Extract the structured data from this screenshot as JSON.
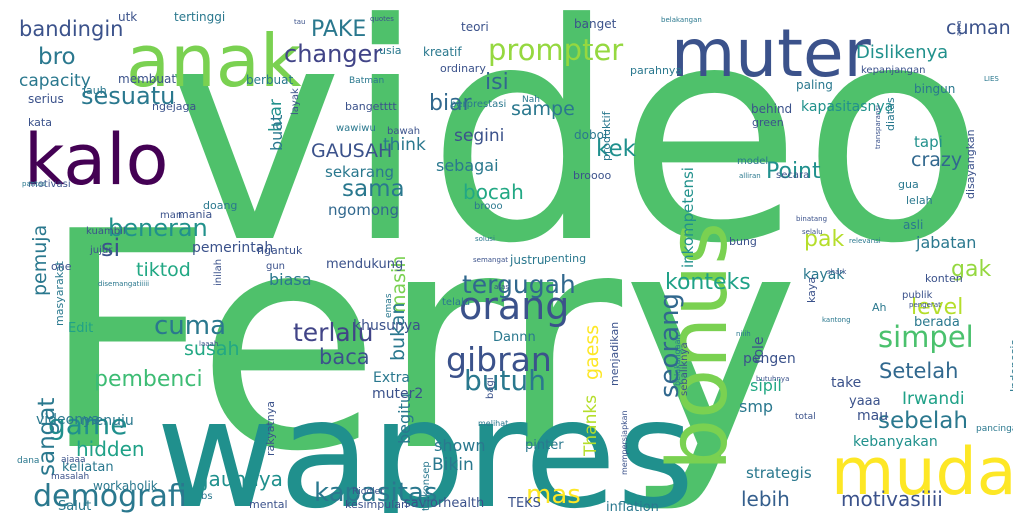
{
  "words": [
    {
      "text": "video",
      "color": "#4fc16b"
    },
    {
      "text": "Ferry",
      "color": "#4fc16b"
    },
    {
      "text": "wapres",
      "color": "#20908d"
    },
    {
      "text": "anak",
      "color": "#7ad151"
    },
    {
      "text": "muter",
      "color": "#3b528b"
    },
    {
      "text": "kalo",
      "color": "#440154"
    },
    {
      "text": "bonus",
      "color": "#7ad151"
    },
    {
      "text": "muda",
      "color": "#fde725"
    },
    {
      "text": "prompter",
      "color": "#95d840"
    },
    {
      "text": "changer",
      "color": "#414487"
    },
    {
      "text": "demografi",
      "color": "#2a788e"
    },
    {
      "text": "kapasitas",
      "color": "#2a788e"
    },
    {
      "text": "mas",
      "color": "#fde725"
    },
    {
      "text": "orang",
      "color": "#3b528b"
    },
    {
      "text": "gibran",
      "color": "#3b528b"
    },
    {
      "text": "butuh",
      "color": "#2a788e"
    },
    {
      "text": "simpel",
      "color": "#4ac16d"
    },
    {
      "text": "sebelah",
      "color": "#2a788e"
    },
    {
      "text": "Setelah",
      "color": "#31688e"
    },
    {
      "text": "lebih",
      "color": "#355f8d"
    },
    {
      "text": "motivasiiii",
      "color": "#3b528b"
    },
    {
      "text": "sesuatu",
      "color": "#2a788e"
    },
    {
      "text": "game",
      "color": "#20908d"
    },
    {
      "text": "terlalu",
      "color": "#414487"
    },
    {
      "text": "tergugah",
      "color": "#31688e"
    },
    {
      "text": "konteks",
      "color": "#1fa187"
    },
    {
      "text": "level",
      "color": "#b5de2b"
    },
    {
      "text": "seorang",
      "color": "#31688e"
    },
    {
      "text": "sangat",
      "color": "#2a788e"
    },
    {
      "text": "pembenci",
      "color": "#3dbc74"
    },
    {
      "text": "cuma",
      "color": "#2a788e"
    },
    {
      "text": "susah",
      "color": "#22a884"
    },
    {
      "text": "hidden",
      "color": "#1fa187"
    },
    {
      "text": "jauhnya",
      "color": "#20908d"
    },
    {
      "text": "Dislikenya",
      "color": "#21918c"
    },
    {
      "text": "cuman",
      "color": "#3b528b"
    },
    {
      "text": "PAKE",
      "color": "#2a788e"
    },
    {
      "text": "bro",
      "color": "#2a788e"
    },
    {
      "text": "bandingin",
      "color": "#3b528b"
    },
    {
      "text": "capacity",
      "color": "#2a788e"
    },
    {
      "text": "GAUSAH",
      "color": "#3b528b"
    },
    {
      "text": "Point",
      "color": "#20908d"
    },
    {
      "text": "crazy",
      "color": "#31688e"
    },
    {
      "text": "kek",
      "color": "#20908d"
    },
    {
      "text": "sama",
      "color": "#2a788e"
    },
    {
      "text": "si",
      "color": "#3b528b"
    },
    {
      "text": "beneran",
      "color": "#21918c"
    },
    {
      "text": "tiktod",
      "color": "#22a884"
    },
    {
      "text": "pemuja",
      "color": "#2a788e"
    },
    {
      "text": "pak",
      "color": "#b5de2b"
    },
    {
      "text": "gak",
      "color": "#95d840"
    },
    {
      "text": "isi",
      "color": "#31688e"
    },
    {
      "text": "biar",
      "color": "#31688e"
    },
    {
      "text": "sampe",
      "color": "#2a788e"
    },
    {
      "text": "bocah",
      "color": "#22a884"
    },
    {
      "text": "masih",
      "color": "#7ad151"
    },
    {
      "text": "bukan",
      "color": "#2a788e"
    },
    {
      "text": "baca",
      "color": "#3b528b"
    },
    {
      "text": "biasa",
      "color": "#2a788e"
    },
    {
      "text": "Irwandi",
      "color": "#1fa187"
    },
    {
      "text": "jabatan",
      "color": "#2a788e"
    },
    {
      "text": "smp",
      "color": "#2a788e"
    },
    {
      "text": "sipil",
      "color": "#22a884"
    },
    {
      "text": "Bikin",
      "color": "#2a788e"
    },
    {
      "text": "shown",
      "color": "#2a788e"
    },
    {
      "text": "begitu",
      "color": "#2a788e"
    },
    {
      "text": "gaess",
      "color": "#fde725"
    },
    {
      "text": "Thanks",
      "color": "#b5de2b"
    },
    {
      "text": "strategis",
      "color": "#2a788e"
    },
    {
      "text": "kebanyakan",
      "color": "#21918c"
    },
    {
      "text": "think",
      "color": "#2a788e"
    },
    {
      "text": "segini",
      "color": "#3b528b"
    },
    {
      "text": "sebagai",
      "color": "#2a788e"
    },
    {
      "text": "sekarang",
      "color": "#2a788e"
    },
    {
      "text": "ngomong",
      "color": "#31688e"
    },
    {
      "text": "luar",
      "color": "#21918c"
    },
    {
      "text": "buat",
      "color": "#2a788e"
    },
    {
      "text": "tapi",
      "color": "#21918c"
    },
    {
      "text": "inkompetensi",
      "color": "#21918c"
    },
    {
      "text": "kapasitasnya",
      "color": "#21918c"
    },
    {
      "text": "pemerintah",
      "color": "#3b528b"
    },
    {
      "text": "khusunya",
      "color": "#3b528b"
    },
    {
      "text": "pengen",
      "color": "#3b528b"
    },
    {
      "text": "role",
      "color": "#3b528b"
    },
    {
      "text": "mau",
      "color": "#3b528b"
    },
    {
      "text": "berada",
      "color": "#2a788e"
    },
    {
      "text": "kayak",
      "color": "#2a788e"
    },
    {
      "text": "Extra",
      "color": "#2a788e"
    },
    {
      "text": "muter2",
      "color": "#3b528b"
    },
    {
      "text": "menuju",
      "color": "#2a788e"
    },
    {
      "text": "mendukung",
      "color": "#3b528b"
    },
    {
      "text": "keliatan",
      "color": "#2a788e"
    },
    {
      "text": "Salut",
      "color": "#2a788e"
    },
    {
      "text": "videonya",
      "color": "#2a788e"
    },
    {
      "text": "workaholik",
      "color": "#2a788e"
    },
    {
      "text": "take",
      "color": "#3b528b"
    },
    {
      "text": "yaaa",
      "color": "#3b528b"
    },
    {
      "text": "pinter",
      "color": "#2a788e"
    },
    {
      "text": "Dannn",
      "color": "#2a788e"
    },
    {
      "text": "Edit",
      "color": "#1fa187"
    },
    {
      "text": "inflation",
      "color": "#2a788e"
    },
    {
      "text": "saviorhealth",
      "color": "#3b528b"
    },
    {
      "text": "TEKS",
      "color": "#3b528b"
    },
    {
      "text": "mental",
      "color": "#3b528b"
    },
    {
      "text": "kesimpulan",
      "color": "#3b528b"
    },
    {
      "text": "utk",
      "color": "#3b528b"
    },
    {
      "text": "tertinggi",
      "color": "#2a788e"
    },
    {
      "text": "behind",
      "color": "#3b528b"
    },
    {
      "text": "banget",
      "color": "#3b528b"
    },
    {
      "text": "teori",
      "color": "#3b528b"
    },
    {
      "text": "usia",
      "color": "#2a788e"
    },
    {
      "text": "kreatif",
      "color": "#2a788e"
    },
    {
      "text": "ordinary",
      "color": "#3b528b"
    },
    {
      "text": "parahnya",
      "color": "#2a788e"
    },
    {
      "text": "membuat",
      "color": "#3b528b"
    },
    {
      "text": "berbuat",
      "color": "#2a788e"
    },
    {
      "text": "Batman",
      "color": "#2a788e"
    },
    {
      "text": "Nah",
      "color": "#2a788e"
    },
    {
      "text": "kepanjangan",
      "color": "#3b528b"
    },
    {
      "text": "paling",
      "color": "#2a788e"
    },
    {
      "text": "bingun",
      "color": "#2a788e"
    },
    {
      "text": "serius",
      "color": "#3b528b"
    },
    {
      "text": "ngejaga",
      "color": "#3b528b"
    },
    {
      "text": "bangetttt",
      "color": "#3b528b"
    },
    {
      "text": "berprestasi",
      "color": "#2a788e"
    },
    {
      "text": "kata",
      "color": "#3b528b"
    },
    {
      "text": "layak",
      "color": "#3b528b"
    },
    {
      "text": "wawiwu",
      "color": "#2a788e"
    },
    {
      "text": "bawah",
      "color": "#3b528b"
    },
    {
      "text": "dobol",
      "color": "#2a788e"
    },
    {
      "text": "produktif",
      "color": "#2a788e"
    },
    {
      "text": "broooo",
      "color": "#3b528b"
    },
    {
      "text": "green",
      "color": "#3b528b"
    },
    {
      "text": "diatas",
      "color": "#2a788e"
    },
    {
      "text": "model",
      "color": "#2a788e"
    },
    {
      "text": "secara",
      "color": "#3b528b"
    },
    {
      "text": "gua",
      "color": "#2a788e"
    },
    {
      "text": "lelah",
      "color": "#2a788e"
    },
    {
      "text": "disayangkan",
      "color": "#3b528b"
    },
    {
      "text": "motivasi",
      "color": "#3b528b"
    },
    {
      "text": "doang",
      "color": "#2a788e"
    },
    {
      "text": "mania",
      "color": "#3b528b"
    },
    {
      "text": "man",
      "color": "#3b528b"
    },
    {
      "text": "kuambil",
      "color": "#3b528b"
    },
    {
      "text": "jujur",
      "color": "#3b528b"
    },
    {
      "text": "ngantuk",
      "color": "#3b528b"
    },
    {
      "text": "brooo",
      "color": "#2a788e"
    },
    {
      "text": "bung",
      "color": "#3b528b"
    },
    {
      "text": "asli",
      "color": "#2a788e"
    },
    {
      "text": "gun",
      "color": "#3b528b"
    },
    {
      "text": "inilah",
      "color": "#3b528b"
    },
    {
      "text": "justru",
      "color": "#2a788e"
    },
    {
      "text": "penting",
      "color": "#2a788e"
    },
    {
      "text": "masyarakat",
      "color": "#2a788e"
    },
    {
      "text": "publik",
      "color": "#3b528b"
    },
    {
      "text": "konten",
      "color": "#3b528b"
    },
    {
      "text": "kaya",
      "color": "#3b528b"
    },
    {
      "text": "Ah",
      "color": "#2a788e"
    },
    {
      "text": "Indonesia",
      "color": "#2a788e"
    },
    {
      "text": "menjadikan",
      "color": "#3b528b"
    },
    {
      "text": "sebaliknya",
      "color": "#3b528b"
    },
    {
      "text": "bagi",
      "color": "#3b528b"
    },
    {
      "text": "terkonsep",
      "color": "#2a788e"
    },
    {
      "text": "rakyatnya",
      "color": "#3b528b"
    },
    {
      "text": "telalu",
      "color": "#2a788e"
    },
    {
      "text": "emas",
      "color": "#2a788e"
    },
    {
      "text": "one",
      "color": "#3b528b"
    },
    {
      "text": "jauh",
      "color": "#2a788e"
    },
    {
      "text": "ajaaa",
      "color": "#3b528b"
    },
    {
      "text": "dana",
      "color": "#2a788e"
    },
    {
      "text": "masalah",
      "color": "#3b528b"
    },
    {
      "text": "Riddler",
      "color": "#3b528b"
    },
    {
      "text": "bs",
      "color": "#2a788e"
    },
    {
      "text": "total",
      "color": "#3b528b"
    },
    {
      "text": "pancingan",
      "color": "#2a788e"
    },
    {
      "text": "butuhnya",
      "color": "#3b528b"
    },
    {
      "text": "melihat",
      "color": "#2a788e"
    },
    {
      "text": "mempersiapkan",
      "color": "#3b528b"
    },
    {
      "text": "belakangaan",
      "color": "#2a788e"
    },
    {
      "text": "quotes",
      "color": "#3b528b"
    },
    {
      "text": "belakangan",
      "color": "#2a788e"
    },
    {
      "text": "tau",
      "color": "#3b528b"
    },
    {
      "text": "ama",
      "color": "#3b528b"
    },
    {
      "text": "LIES",
      "color": "#2a788e"
    },
    {
      "text": "niiih",
      "color": "#2a788e"
    },
    {
      "text": "transparansi",
      "color": "#3b528b"
    },
    {
      "text": "alliran",
      "color": "#2a788e"
    },
    {
      "text": "binatang",
      "color": "#3b528b"
    },
    {
      "text": "selalu",
      "color": "#3b528b"
    },
    {
      "text": "relevansi",
      "color": "#2a788e"
    },
    {
      "text": "pantas",
      "color": "#2a788e"
    },
    {
      "text": "semangat",
      "color": "#3b528b"
    },
    {
      "text": "solusi",
      "color": "#2a788e"
    },
    {
      "text": "disemangatiiiii",
      "color": "#2a788e"
    },
    {
      "text": "laaah",
      "color": "#3b528b"
    },
    {
      "text": "atas",
      "color": "#3b528b"
    },
    {
      "text": "shark",
      "color": "#3b528b"
    },
    {
      "text": "pengerat",
      "color": "#3b528b"
    },
    {
      "text": "kantong",
      "color": "#2a788e"
    }
  ]
}
